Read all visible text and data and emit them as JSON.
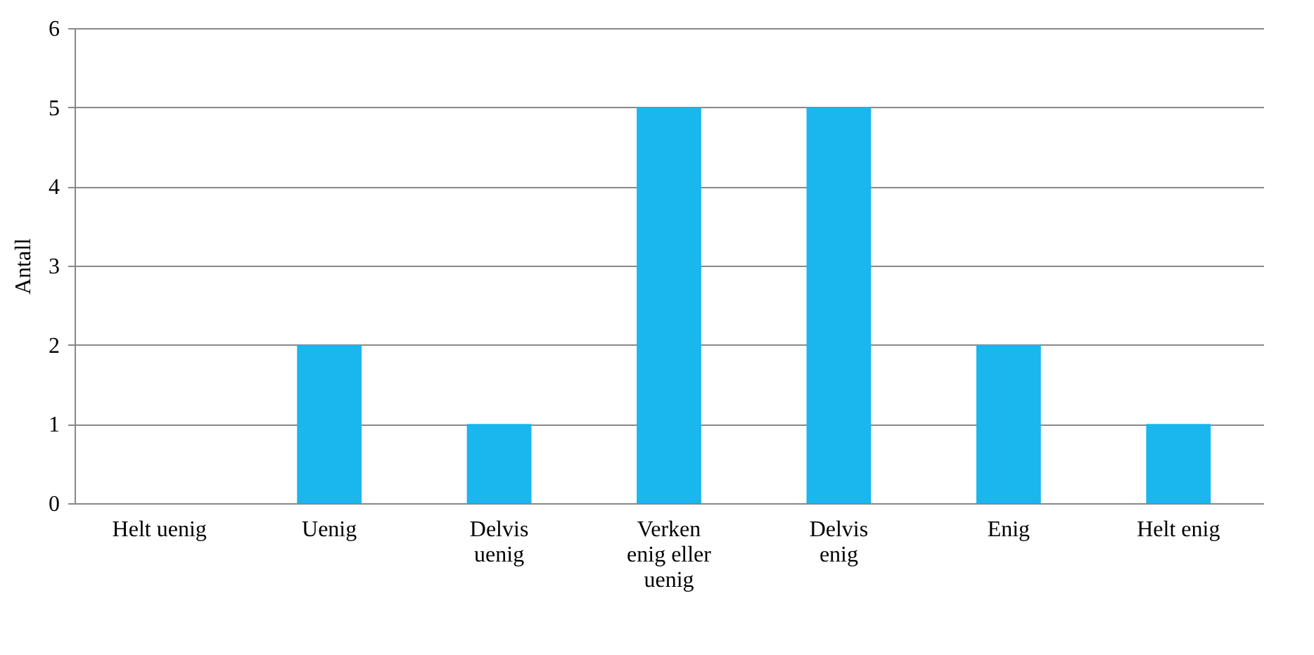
{
  "chart_data": {
    "type": "bar",
    "ylabel": "Antall",
    "categories": [
      "Helt uenig",
      "Uenig",
      "Delvis uenig",
      "Verken enig eller uenig",
      "Delvis enig",
      "Enig",
      "Helt enig"
    ],
    "values": [
      0,
      2,
      1,
      5,
      5,
      2,
      1
    ],
    "color": "#1ab6ee",
    "ylim": [
      0,
      6
    ],
    "yticks": [
      0,
      1,
      2,
      3,
      4,
      5,
      6
    ],
    "grid": "y"
  }
}
